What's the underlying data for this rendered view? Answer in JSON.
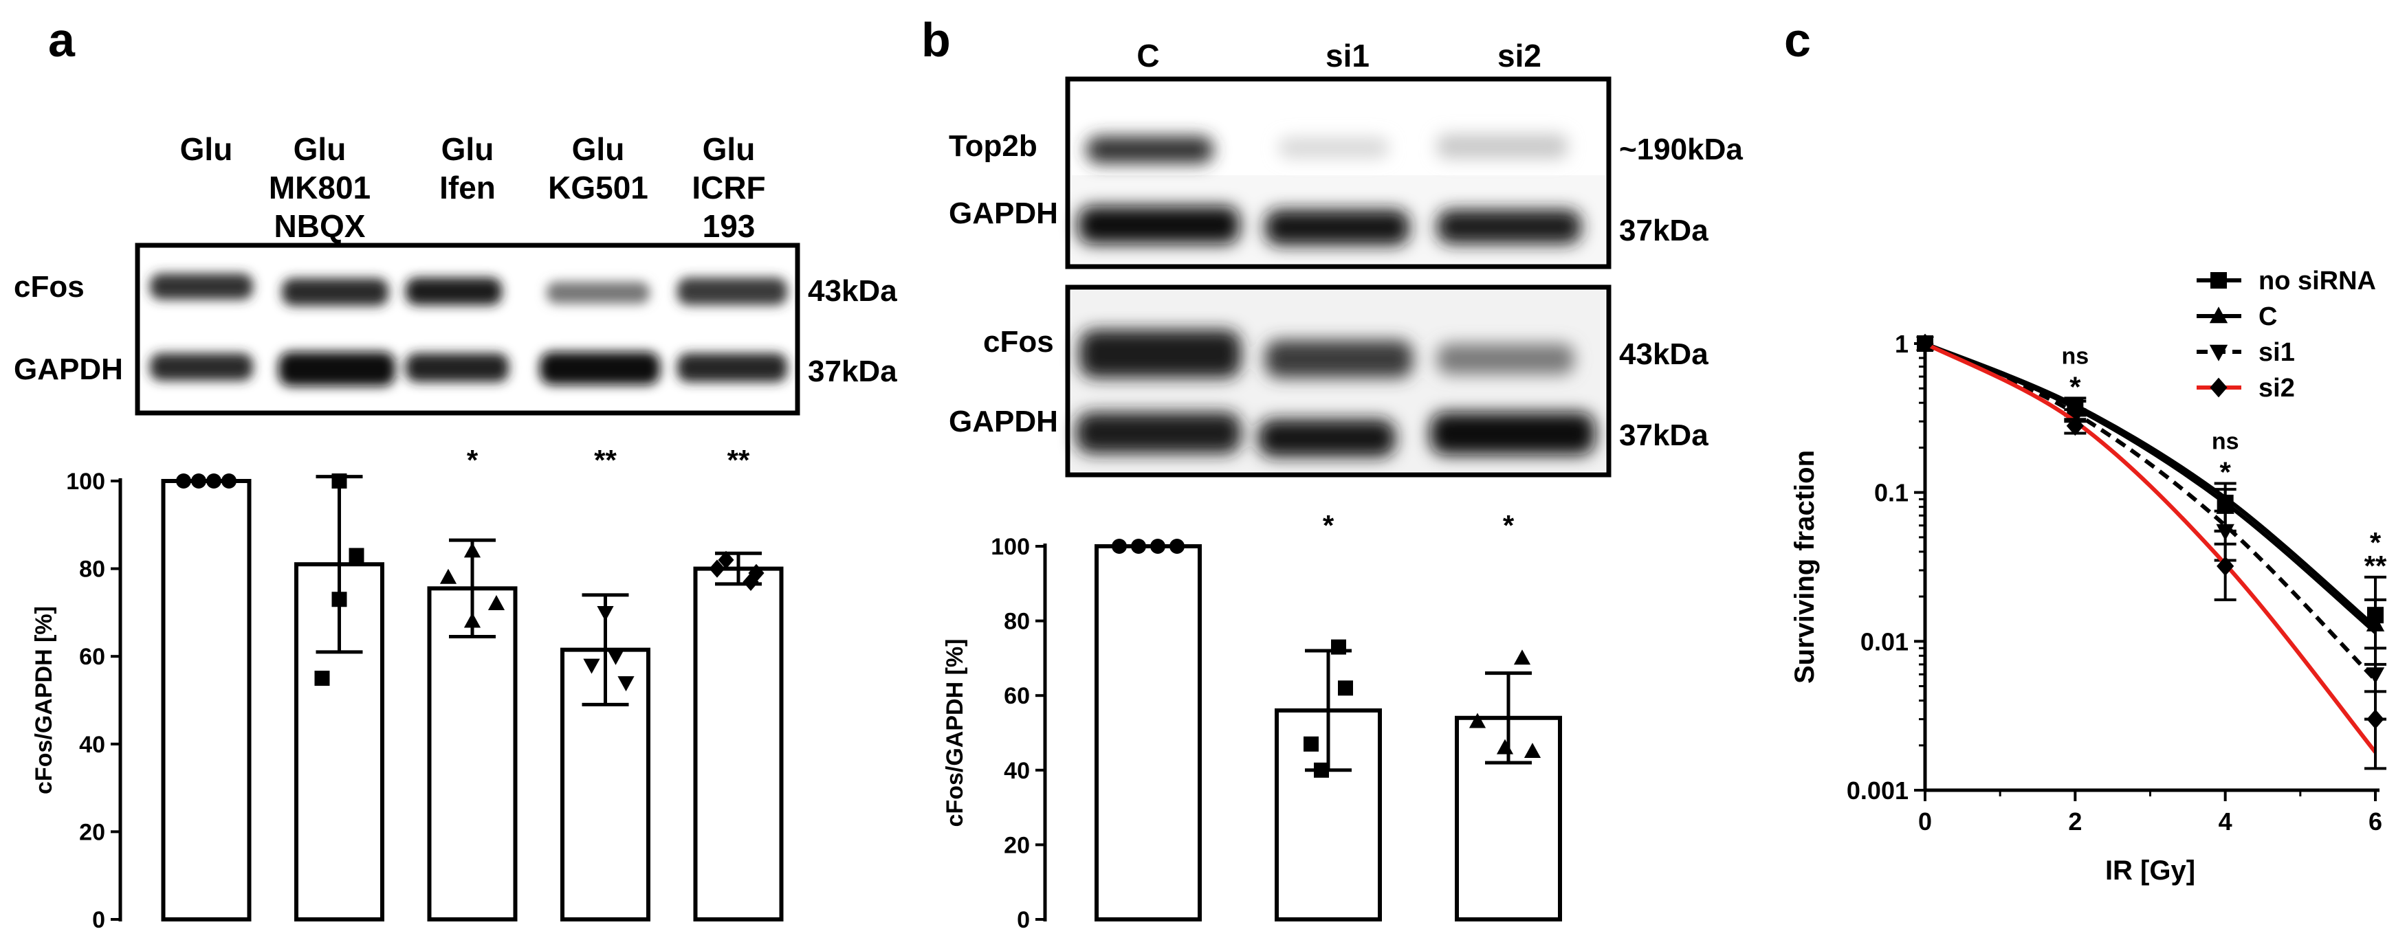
{
  "panels": {
    "a": {
      "letter": "a",
      "lanes": [
        "Glu",
        "Glu\nMK801\nNBQX",
        "Glu\nIfen",
        "Glu\nKG501",
        "Glu\nICRF\n193"
      ],
      "blot_rows": [
        "cFos",
        "GAPDH"
      ],
      "kda": [
        "43kDa",
        "37kDa"
      ]
    },
    "b": {
      "letter": "b",
      "lanes": [
        "C",
        "si1",
        "si2"
      ],
      "blot1_rows": [
        "Top2b",
        "GAPDH"
      ],
      "blot1_kda": [
        "~190kDa",
        "37kDa"
      ],
      "blot2_rows": [
        "cFos",
        "GAPDH"
      ],
      "blot2_kda": [
        "43kDa",
        "37kDa"
      ]
    },
    "c": {
      "letter": "c"
    }
  },
  "chart_data": [
    {
      "id": "a",
      "type": "bar",
      "ylabel": "cFos/GAPDH [%]",
      "ylim": [
        0,
        100
      ],
      "yticks": [
        0,
        20,
        40,
        60,
        80,
        100
      ],
      "values": [
        100,
        81,
        75.5,
        61.5,
        80
      ],
      "errors": [
        0,
        20,
        11,
        12.5,
        3.5
      ],
      "markers": [
        "circle",
        "square",
        "triangle",
        "triangle-down",
        "diamond"
      ],
      "points": [
        [
          100,
          100,
          100,
          100
        ],
        [
          100,
          83,
          73,
          55
        ],
        [
          84,
          78,
          72,
          68
        ],
        [
          70,
          60,
          58,
          54
        ],
        [
          82,
          80,
          79,
          77
        ]
      ],
      "significance": [
        "",
        "",
        "*",
        "**",
        "**"
      ]
    },
    {
      "id": "b",
      "type": "bar",
      "ylabel": "cFos/GAPDH [%]",
      "ylim": [
        0,
        100
      ],
      "yticks": [
        0,
        20,
        40,
        60,
        80,
        100
      ],
      "values": [
        100,
        56,
        54
      ],
      "errors": [
        0,
        16,
        12
      ],
      "markers": [
        "circle",
        "square",
        "triangle"
      ],
      "points": [
        [
          100,
          100,
          100,
          100
        ],
        [
          73,
          62,
          47,
          40
        ],
        [
          70,
          53,
          46,
          45
        ]
      ],
      "significance": [
        "",
        "*",
        "*"
      ]
    },
    {
      "id": "c",
      "type": "line",
      "xlabel": "IR [Gy]",
      "ylabel": "Surviving fraction",
      "yscale": "log",
      "xlim": [
        0,
        6
      ],
      "ylim": [
        0.001,
        1
      ],
      "xticks": [
        0,
        2,
        4,
        6
      ],
      "yticks": [
        1,
        0.1,
        0.01,
        0.001
      ],
      "ytick_labels": [
        "1",
        "0.1",
        "0.01",
        "0.001"
      ],
      "legend_position": "top-right",
      "series": [
        {
          "name": "no siRNA",
          "marker": "square",
          "color": "#000000",
          "dash": "solid",
          "x": [
            0,
            2,
            4,
            6
          ],
          "y": [
            1,
            0.38,
            0.085,
            0.015
          ],
          "err": [
            0,
            0.05,
            0.03,
            0.012
          ],
          "curve": [
            1,
            0.385,
            0.092,
            0.0125
          ]
        },
        {
          "name": "C",
          "marker": "triangle",
          "color": "#000000",
          "dash": "solid",
          "x": [
            0,
            2,
            4,
            6
          ],
          "y": [
            1,
            0.37,
            0.08,
            0.013
          ],
          "err": [
            0,
            0.04,
            0.025,
            0.006
          ],
          "curve": [
            1,
            0.37,
            0.085,
            0.0115
          ]
        },
        {
          "name": "si1",
          "marker": "triangle-down",
          "color": "#000000",
          "dash": "dashed",
          "x": [
            0,
            2,
            4,
            6
          ],
          "y": [
            1,
            0.33,
            0.055,
            0.006
          ],
          "err": [
            0,
            0.03,
            0.02,
            0.003
          ],
          "curve": [
            1,
            0.34,
            0.06,
            0.0055
          ]
        },
        {
          "name": "si2",
          "marker": "diamond",
          "color": "#e8201a",
          "dash": "solid",
          "x": [
            0,
            2,
            4,
            6
          ],
          "y": [
            1,
            0.28,
            0.032,
            0.003
          ],
          "err": [
            0,
            0.03,
            0.013,
            0.0016
          ],
          "curve": [
            1,
            0.3,
            0.033,
            0.0018
          ]
        }
      ],
      "annotations": [
        {
          "x": 2,
          "lines": [
            {
              "text": "ns",
              "color": "#000000"
            },
            {
              "text": "*",
              "color": "#e8201a"
            }
          ]
        },
        {
          "x": 4,
          "lines": [
            {
              "text": "ns",
              "color": "#000000"
            },
            {
              "text": "*",
              "color": "#e8201a"
            }
          ]
        },
        {
          "x": 6,
          "lines": [
            {
              "text": "*",
              "color": "#000000"
            },
            {
              "text": "**",
              "color": "#e8201a"
            }
          ]
        }
      ]
    }
  ]
}
